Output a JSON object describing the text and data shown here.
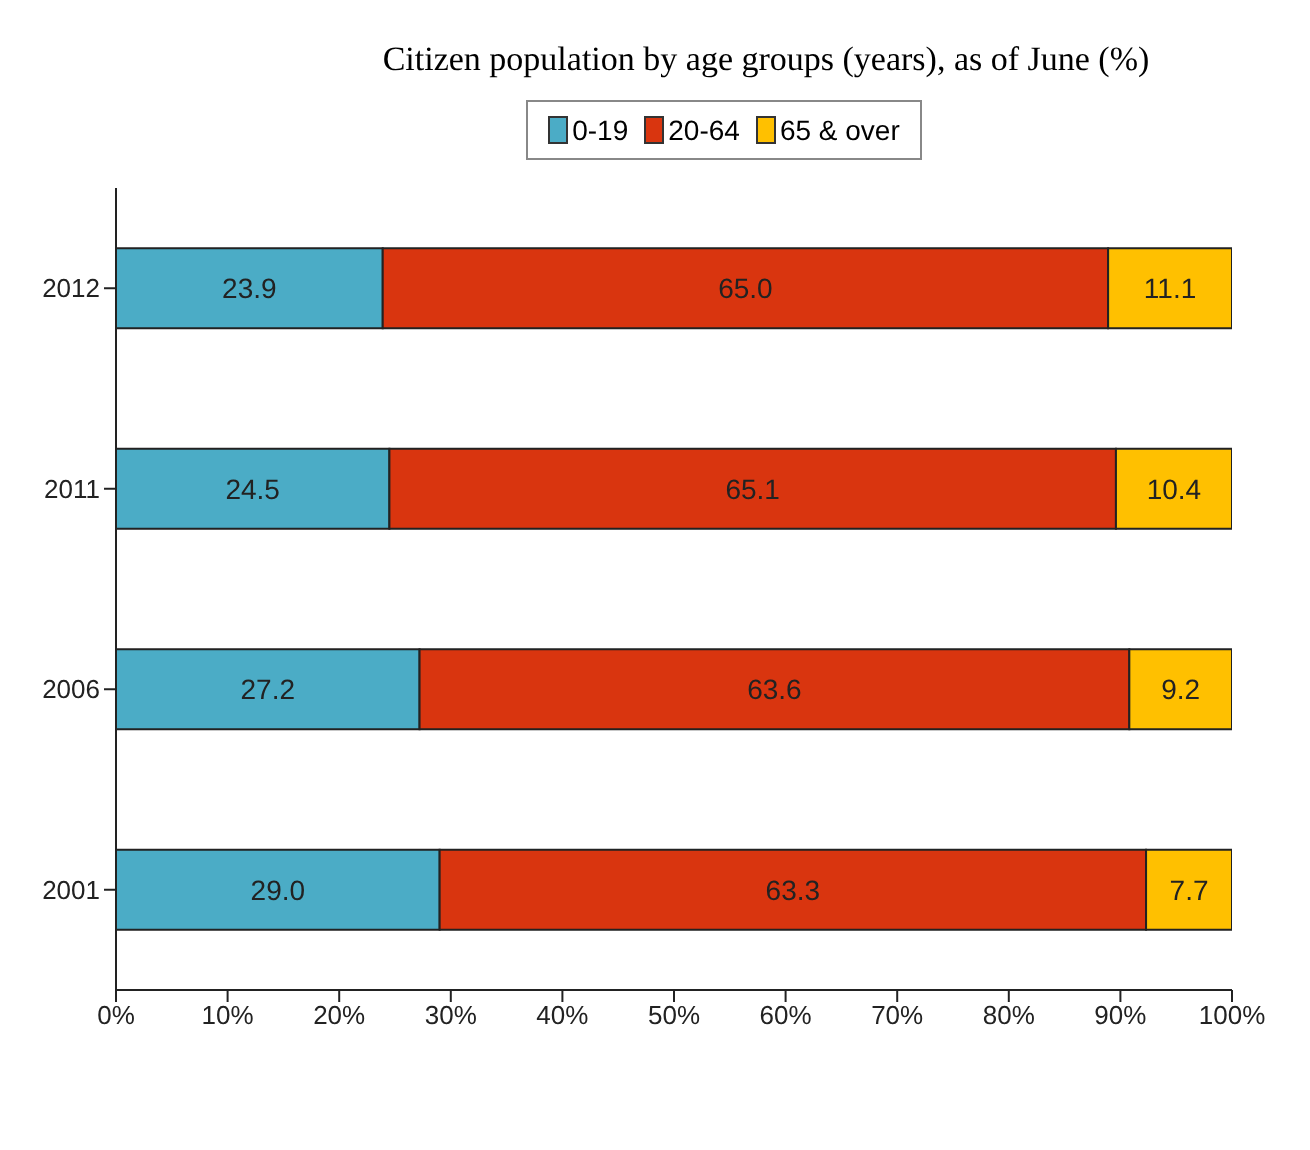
{
  "chart_data": {
    "type": "bar",
    "orientation": "horizontal",
    "stacked": true,
    "title": "Citizen population by age groups (years), as of June (%)",
    "categories": [
      "2012",
      "2011",
      "2006",
      "2001"
    ],
    "series": [
      {
        "name": "0-19",
        "color": "#4bacc6",
        "values": [
          23.9,
          24.5,
          27.2,
          29.0
        ],
        "value_labels": [
          "23.9",
          "24.5",
          "27.2",
          "29.0"
        ]
      },
      {
        "name": "20-64",
        "color": "#d9350f",
        "values": [
          65.0,
          65.1,
          63.6,
          63.3
        ],
        "value_labels": [
          "65.0",
          "65.1",
          "63.6",
          "63.3"
        ]
      },
      {
        "name": "65 & over",
        "color": "#ffc000",
        "values": [
          11.1,
          10.4,
          9.2,
          7.7
        ],
        "value_labels": [
          "11.1",
          "10.4",
          "9.2",
          "7.7"
        ]
      }
    ],
    "xlim": [
      0,
      100
    ],
    "xticks": [
      {
        "value": 0,
        "label": "0%"
      },
      {
        "value": 10,
        "label": "10%"
      },
      {
        "value": 20,
        "label": "20%"
      },
      {
        "value": 30,
        "label": "30%"
      },
      {
        "value": 40,
        "label": "40%"
      },
      {
        "value": 50,
        "label": "50%"
      },
      {
        "value": 60,
        "label": "60%"
      },
      {
        "value": 70,
        "label": "70%"
      },
      {
        "value": 80,
        "label": "80%"
      },
      {
        "value": 90,
        "label": "90%"
      },
      {
        "value": 100,
        "label": "100%"
      }
    ],
    "grid": false,
    "legend": "top"
  }
}
